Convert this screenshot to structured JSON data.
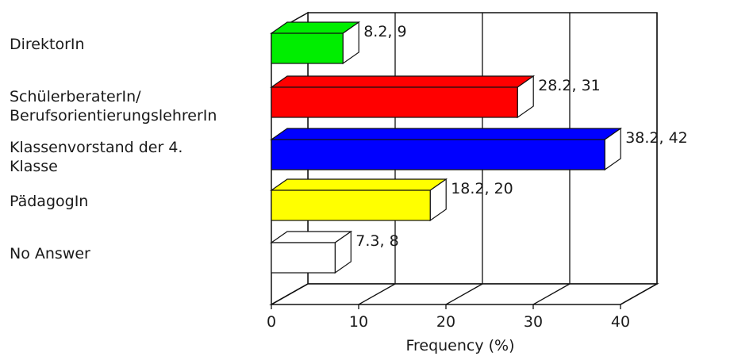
{
  "chart_data": {
    "type": "bar",
    "orientation": "horizontal",
    "style": "3d",
    "categories": [
      "DirektorIn",
      "SchülerberaterIn/\nBerufsorientierungslehrerIn",
      "Klassenvorstand der 4.\nKlasse",
      "PädagogIn",
      "No Answer"
    ],
    "values": [
      8.2,
      28.2,
      38.2,
      18.2,
      7.3
    ],
    "counts": [
      9,
      31,
      42,
      20,
      8
    ],
    "data_labels": [
      "8.2, 9",
      "28.2, 31",
      "38.2, 42",
      "18.2, 20",
      "7.3, 8"
    ],
    "colors": [
      "#00ee00",
      "#ff0000",
      "#0000ff",
      "#ffff00",
      "#ffffff"
    ],
    "xlabel": "Frequency (%)",
    "xlim": [
      0,
      40
    ],
    "xticks": [
      0,
      10,
      20,
      30,
      40
    ],
    "grid": true
  }
}
